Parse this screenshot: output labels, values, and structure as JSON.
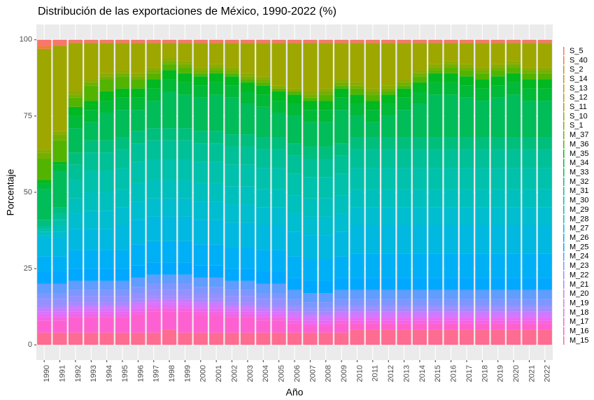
{
  "chart_data": {
    "type": "stacked_bar",
    "title": "Distribución de las exportaciones de México, 1990-2022 (%)",
    "x_label": "Año",
    "y_label": "Porcentaje",
    "categories": [
      "1990",
      "1991",
      "1992",
      "1993",
      "1994",
      "1995",
      "1996",
      "1997",
      "1998",
      "1999",
      "2000",
      "2001",
      "2002",
      "2003",
      "2004",
      "2005",
      "2006",
      "2007",
      "2008",
      "2009",
      "2010",
      "2011",
      "2012",
      "2013",
      "2014",
      "2015",
      "2016",
      "2017",
      "2018",
      "2019",
      "2020",
      "2021",
      "2022"
    ],
    "ylim": [
      -5,
      105
    ],
    "yticks": [
      0,
      25,
      50,
      75,
      100
    ],
    "grid": true,
    "series": [
      {
        "name": "S_5",
        "color": "#F8766D",
        "values": [
          2,
          2,
          1,
          1,
          1,
          1,
          1,
          1,
          1,
          1,
          1,
          1,
          1,
          1,
          1,
          1,
          1,
          1,
          1,
          1,
          1,
          1,
          1,
          1,
          1,
          1,
          1,
          1,
          1,
          1,
          1,
          1,
          1
        ]
      },
      {
        "name": "S_40",
        "color": "#ED813E",
        "values": [
          1,
          0,
          0,
          0,
          0,
          0,
          0,
          0,
          0,
          0,
          0,
          0,
          0,
          0,
          0,
          0,
          0,
          0,
          0,
          0,
          0,
          0,
          0,
          0,
          0,
          0,
          0,
          0,
          0,
          0,
          0,
          0,
          0
        ]
      },
      {
        "name": "S_2",
        "color": "#E68613",
        "values": [
          0,
          0,
          0,
          0,
          0,
          0,
          0,
          0,
          0,
          0,
          0,
          0,
          0,
          0,
          0,
          0,
          0,
          0,
          0,
          0,
          0,
          0,
          0,
          0,
          0,
          0,
          0,
          0,
          0,
          0,
          0,
          0,
          0
        ]
      },
      {
        "name": "S_14",
        "color": "#DA8F00",
        "values": [
          0,
          0,
          0,
          0,
          0,
          0,
          0,
          0,
          0,
          0,
          0,
          0,
          0,
          0,
          0,
          0,
          0,
          0,
          0,
          0,
          0,
          0,
          0,
          0,
          0,
          0,
          0,
          0,
          0,
          0,
          0,
          0,
          0
        ]
      },
      {
        "name": "S_13",
        "color": "#CD9600",
        "values": [
          0,
          0,
          0,
          0,
          0,
          0,
          0,
          0,
          0,
          0,
          0,
          0,
          0,
          0,
          0,
          0,
          0,
          0,
          0,
          0,
          0,
          0,
          0,
          0,
          0,
          0,
          0,
          0,
          0,
          0,
          0,
          0,
          0
        ]
      },
      {
        "name": "S_12",
        "color": "#C09B00",
        "values": [
          0,
          0,
          0,
          0,
          0,
          0,
          0,
          0,
          0,
          0,
          0,
          0,
          0,
          0,
          0,
          0,
          0,
          0,
          0,
          0,
          0,
          0,
          0,
          0,
          0,
          0,
          0,
          0,
          0,
          0,
          0,
          0,
          0
        ]
      },
      {
        "name": "S_11",
        "color": "#B09F00",
        "values": [
          0,
          0,
          0,
          0,
          0,
          0,
          0,
          0,
          0,
          0,
          0,
          0,
          0,
          0,
          0,
          0,
          0,
          0,
          0,
          0,
          0,
          0,
          0,
          0,
          0,
          0,
          0,
          0,
          0,
          0,
          0,
          0,
          0
        ]
      },
      {
        "name": "S_10",
        "color": "#9DA700",
        "values": [
          33,
          28,
          16,
          12,
          10,
          9,
          10,
          8,
          5,
          6,
          8,
          7,
          8,
          10,
          11,
          14,
          15,
          16,
          15,
          12,
          13,
          15,
          14,
          12,
          9,
          7,
          6,
          7,
          8,
          7,
          6,
          8,
          8
        ]
      },
      {
        "name": "S_1",
        "color": "#8CAB00",
        "values": [
          1,
          1,
          1,
          1,
          1,
          1,
          1,
          1,
          1,
          1,
          1,
          1,
          1,
          1,
          1,
          1,
          1,
          1,
          1,
          1,
          1,
          1,
          1,
          1,
          1,
          1,
          1,
          1,
          1,
          1,
          1,
          1,
          1
        ]
      },
      {
        "name": "M_37",
        "color": "#74AF00",
        "values": [
          2,
          2,
          1,
          1,
          1,
          1,
          1,
          1,
          1,
          1,
          1,
          1,
          1,
          1,
          1,
          0,
          0,
          1,
          1,
          1,
          1,
          1,
          1,
          1,
          1,
          1,
          1,
          1,
          1,
          1,
          1,
          1,
          1
        ]
      },
      {
        "name": "M_36",
        "color": "#53B400",
        "values": [
          7,
          7,
          3,
          5,
          4,
          4,
          3,
          2,
          2,
          2,
          1,
          1,
          1,
          1,
          1,
          1,
          1,
          1,
          2,
          1,
          2,
          2,
          1,
          1,
          2,
          1,
          2,
          2,
          2,
          2,
          2,
          2,
          2
        ]
      },
      {
        "name": "M_35",
        "color": "#00B81F",
        "values": [
          1,
          1,
          3,
          3,
          3,
          3,
          3,
          3,
          3,
          3,
          3,
          3,
          3,
          3,
          3,
          3,
          3,
          3,
          3,
          3,
          3,
          3,
          3,
          3,
          3,
          3,
          3,
          3,
          3,
          3,
          3,
          3,
          3
        ]
      },
      {
        "name": "M_34",
        "color": "#00BA38",
        "values": [
          2,
          2,
          4,
          4,
          4,
          4,
          4,
          4,
          4,
          4,
          4,
          4,
          4,
          4,
          4,
          4,
          4,
          4,
          4,
          4,
          4,
          4,
          4,
          4,
          4,
          4,
          4,
          4,
          4,
          4,
          4,
          4,
          4
        ]
      },
      {
        "name": "M_33",
        "color": "#00BC59",
        "values": [
          10,
          12,
          8,
          6,
          9,
          9,
          7,
          9,
          12,
          11,
          11,
          12,
          12,
          10,
          10,
          8,
          9,
          8,
          8,
          11,
          7,
          5,
          7,
          9,
          11,
          14,
          14,
          13,
          12,
          13,
          14,
          12,
          12
        ]
      },
      {
        "name": "M_32",
        "color": "#00BF7D",
        "values": [
          2,
          2,
          4,
          4,
          4,
          4,
          4,
          4,
          4,
          4,
          4,
          4,
          4,
          4,
          4,
          4,
          4,
          4,
          4,
          4,
          4,
          4,
          4,
          4,
          4,
          4,
          4,
          4,
          4,
          4,
          4,
          4,
          4
        ]
      },
      {
        "name": "M_31",
        "color": "#00C097",
        "values": [
          1,
          2,
          5,
          6,
          6,
          6,
          6,
          6,
          6,
          6,
          6,
          6,
          6,
          6,
          6,
          6,
          6,
          6,
          6,
          6,
          6,
          6,
          6,
          6,
          6,
          6,
          6,
          6,
          6,
          6,
          6,
          6,
          6
        ]
      },
      {
        "name": "M_30",
        "color": "#00C1AB",
        "values": [
          1,
          2,
          6,
          7,
          7,
          7,
          7,
          7,
          7,
          7,
          7,
          7,
          7,
          7,
          7,
          7,
          7,
          7,
          7,
          7,
          7,
          7,
          7,
          7,
          7,
          7,
          7,
          7,
          7,
          7,
          7,
          7,
          7
        ]
      },
      {
        "name": "M_29",
        "color": "#00C0BE",
        "values": [
          1,
          2,
          5,
          6,
          6,
          6,
          6,
          6,
          6,
          6,
          6,
          6,
          6,
          6,
          6,
          6,
          6,
          6,
          6,
          6,
          6,
          6,
          6,
          6,
          6,
          6,
          6,
          6,
          6,
          6,
          6,
          6,
          6
        ]
      },
      {
        "name": "M_28",
        "color": "#00BDD0",
        "values": [
          1,
          2,
          5,
          6,
          6,
          6,
          6,
          6,
          6,
          6,
          6,
          6,
          6,
          6,
          6,
          6,
          6,
          6,
          6,
          6,
          6,
          6,
          6,
          6,
          6,
          6,
          6,
          6,
          6,
          6,
          6,
          6,
          6
        ]
      },
      {
        "name": "M_27",
        "color": "#00B8E0",
        "values": [
          6,
          6,
          7,
          7,
          7,
          8,
          8,
          8,
          8,
          8,
          8,
          8,
          8,
          8,
          8,
          8,
          8,
          8,
          8,
          8,
          9,
          9,
          9,
          9,
          9,
          9,
          9,
          9,
          9,
          9,
          9,
          9,
          9
        ]
      },
      {
        "name": "M_26",
        "color": "#00B0F6",
        "values": [
          5,
          5,
          6,
          6,
          6,
          6,
          7,
          7,
          7,
          7,
          7,
          7,
          7,
          7,
          7,
          7,
          7,
          7,
          7,
          7,
          8,
          8,
          8,
          8,
          8,
          8,
          8,
          8,
          8,
          8,
          8,
          8,
          8
        ]
      },
      {
        "name": "M_25",
        "color": "#00A8FF",
        "values": [
          4,
          4,
          4,
          4,
          4,
          4,
          4,
          4,
          4,
          4,
          4,
          4,
          4,
          4,
          4,
          4,
          4,
          4,
          4,
          4,
          4,
          4,
          4,
          4,
          4,
          4,
          4,
          4,
          4,
          4,
          4,
          4,
          4
        ]
      },
      {
        "name": "M_24",
        "color": "#619CFF",
        "values": [
          3,
          3,
          3,
          3,
          3,
          3,
          3,
          3,
          3,
          3,
          3,
          3,
          3,
          3,
          3,
          3,
          3,
          3,
          3,
          3,
          3,
          3,
          3,
          3,
          3,
          3,
          3,
          3,
          3,
          3,
          3,
          3,
          3
        ]
      },
      {
        "name": "M_23",
        "color": "#7F96FF",
        "values": [
          2,
          2,
          2,
          2,
          2,
          2,
          2,
          2,
          2,
          2,
          2,
          2,
          2,
          2,
          2,
          2,
          2,
          2,
          2,
          2,
          2,
          2,
          2,
          2,
          2,
          2,
          2,
          2,
          2,
          2,
          2,
          2,
          2
        ]
      },
      {
        "name": "M_22",
        "color": "#9590FF",
        "values": [
          2,
          2,
          2,
          2,
          2,
          2,
          2,
          2,
          2,
          2,
          2,
          2,
          2,
          2,
          2,
          2,
          1,
          1,
          1,
          1,
          1,
          1,
          1,
          1,
          1,
          1,
          1,
          1,
          1,
          1,
          1,
          1,
          1
        ]
      },
      {
        "name": "M_21",
        "color": "#A58AFF",
        "values": [
          1,
          1,
          1,
          1,
          1,
          1,
          1,
          1,
          1,
          1,
          1,
          1,
          1,
          1,
          1,
          1,
          1,
          1,
          1,
          1,
          1,
          1,
          1,
          1,
          1,
          1,
          1,
          1,
          1,
          1,
          1,
          1,
          1
        ]
      },
      {
        "name": "M_20",
        "color": "#C77CFF",
        "values": [
          1,
          1,
          1,
          1,
          1,
          1,
          1,
          1,
          1,
          1,
          1,
          1,
          1,
          1,
          1,
          1,
          1,
          1,
          1,
          1,
          1,
          1,
          1,
          1,
          1,
          1,
          1,
          1,
          1,
          1,
          1,
          1,
          1
        ]
      },
      {
        "name": "M_19",
        "color": "#D874FD",
        "values": [
          1,
          1,
          1,
          1,
          1,
          1,
          1,
          1,
          1,
          1,
          1,
          1,
          1,
          1,
          1,
          1,
          1,
          1,
          1,
          1,
          1,
          1,
          1,
          1,
          1,
          1,
          1,
          1,
          1,
          1,
          1,
          1,
          1
        ]
      },
      {
        "name": "M_18",
        "color": "#E76BF3",
        "values": [
          1,
          1,
          1,
          1,
          1,
          1,
          1,
          1,
          1,
          1,
          1,
          1,
          1,
          1,
          1,
          1,
          1,
          1,
          1,
          1,
          1,
          1,
          1,
          1,
          1,
          1,
          1,
          1,
          1,
          1,
          1,
          1,
          1
        ]
      },
      {
        "name": "M_17",
        "color": "#F564E3",
        "values": [
          1,
          1,
          1,
          1,
          1,
          1,
          1,
          1,
          1,
          1,
          1,
          1,
          1,
          1,
          1,
          1,
          1,
          1,
          1,
          1,
          1,
          1,
          1,
          1,
          1,
          1,
          1,
          1,
          1,
          1,
          1,
          1,
          1
        ]
      },
      {
        "name": "M_16",
        "color": "#FD61D1",
        "values": [
          4,
          4,
          5,
          5,
          5,
          5,
          6,
          7,
          6,
          7,
          6,
          6,
          5,
          5,
          4,
          4,
          3,
          2,
          2,
          3,
          2,
          2,
          2,
          2,
          2,
          2,
          2,
          2,
          2,
          2,
          2,
          2,
          2
        ]
      },
      {
        "name": "M_15",
        "color": "#FF6C91",
        "values": [
          4,
          4,
          4,
          4,
          4,
          4,
          4,
          4,
          5,
          4,
          4,
          4,
          4,
          4,
          4,
          4,
          4,
          4,
          4,
          4,
          5,
          5,
          5,
          5,
          5,
          5,
          5,
          5,
          5,
          5,
          5,
          5,
          5
        ]
      }
    ]
  }
}
